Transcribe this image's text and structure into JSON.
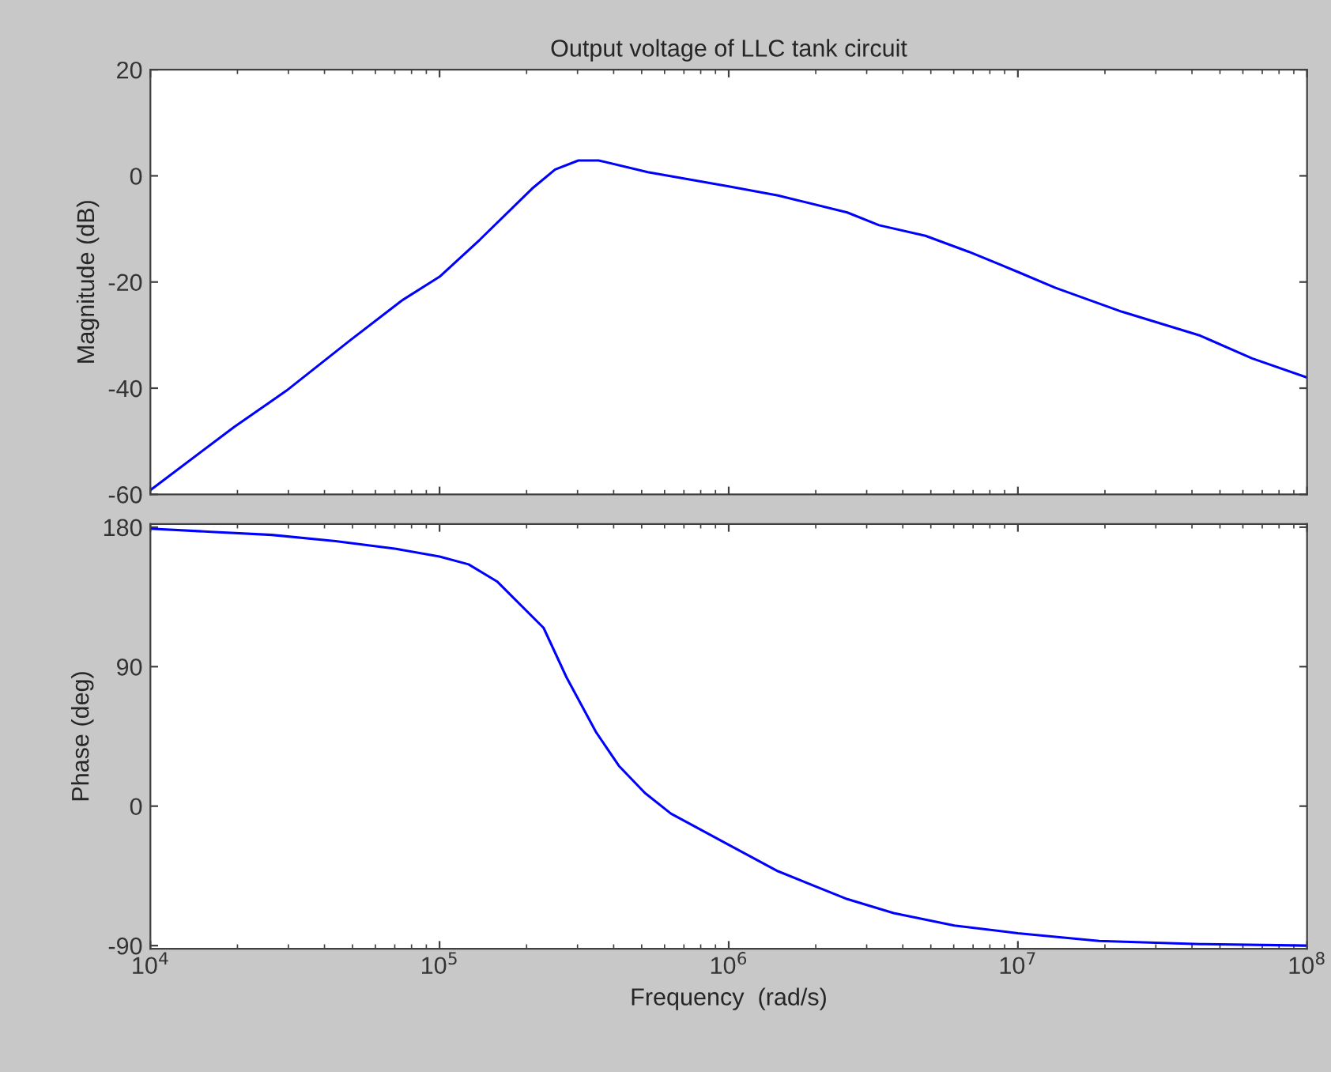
{
  "chart_data": [
    {
      "type": "line",
      "title": "Output voltage of LLC tank circuit",
      "ylabel": "Magnitude (dB)",
      "log": "x",
      "grid": false,
      "tick_labels": "y",
      "xlim": [
        10000,
        100000000
      ],
      "ylim": [
        -60,
        20
      ],
      "yticks": [
        -60,
        -40,
        -20,
        0,
        20
      ],
      "x": [
        10000,
        19500,
        29500,
        49000,
        74000,
        100000,
        138000,
        209000,
        251000,
        302000,
        355000,
        525000,
        1000000,
        1480000,
        2570000,
        3310000,
        4790000,
        6760000,
        10000000,
        13500000,
        22900000,
        42700000,
        64600000,
        100000000
      ],
      "series": [
        {
          "color": "#0000ff",
          "values": [
            -59.2,
            -47.3,
            -40.5,
            -31.0,
            -23.5,
            -19.0,
            -12.0,
            -2.4,
            1.2,
            2.9,
            2.9,
            0.7,
            -2.0,
            -3.7,
            -6.9,
            -9.3,
            -11.3,
            -14.3,
            -18.1,
            -21.1,
            -25.6,
            -30.1,
            -34.4,
            -38.0
          ]
        }
      ]
    },
    {
      "type": "line",
      "xlabel": "Frequency  (rad/s)",
      "ylabel": "Phase (deg)",
      "log": "x",
      "grid": false,
      "xlim": [
        10000,
        100000000
      ],
      "ylim": [
        -92,
        182
      ],
      "yticks": [
        -90,
        0,
        90,
        180
      ],
      "xticks": [
        {
          "value": 10000,
          "label": "10$^{4}$"
        },
        {
          "value": 100000,
          "label": "10$^{5}$"
        },
        {
          "value": 1000000,
          "label": "10$^{6}$"
        },
        {
          "value": 10000000,
          "label": "10$^{7}$"
        },
        {
          "value": 100000000,
          "label": "10$^{8}$"
        }
      ],
      "x": [
        10000,
        16200,
        26300,
        43700,
        70800,
        100000,
        126000,
        158000,
        229000,
        275000,
        347000,
        417000,
        513000,
        631000,
        1000000,
        1480000,
        2570000,
        3720000,
        6030000,
        10000000,
        19100000,
        42700000,
        100000000
      ],
      "series": [
        {
          "color": "#0000ff",
          "values": [
            179,
            177,
            175,
            171,
            166,
            161,
            156,
            145,
            115,
            83,
            48,
            26,
            8.5,
            -4.8,
            -25,
            -42,
            -60,
            -69,
            -77,
            -82,
            -87,
            -89,
            -90
          ]
        }
      ]
    }
  ]
}
